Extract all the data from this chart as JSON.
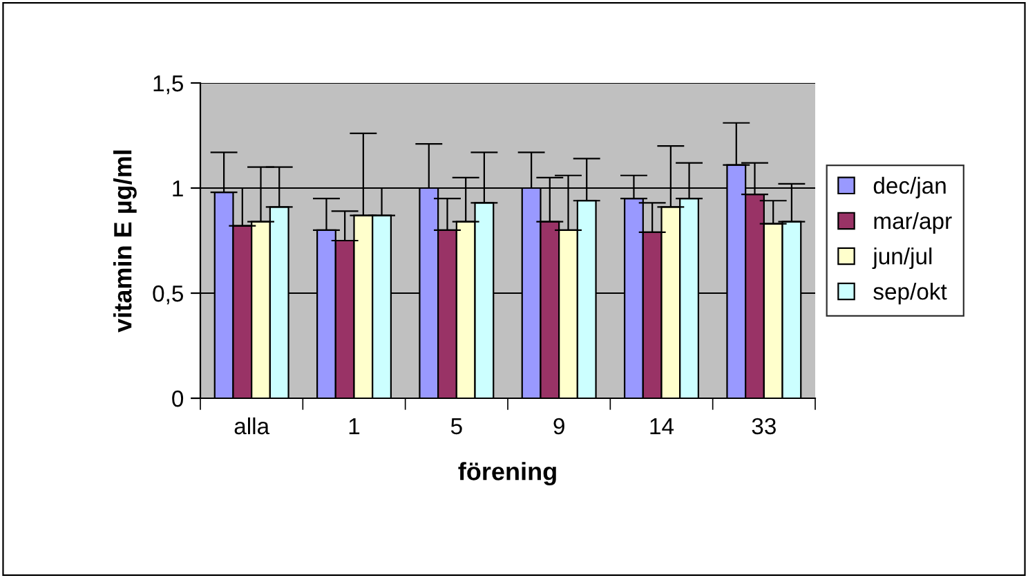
{
  "chart_data": {
    "type": "bar",
    "xlabel": "förening",
    "ylabel": "vitamin E µg/ml",
    "categories": [
      "alla",
      "1",
      "5",
      "9",
      "14",
      "33"
    ],
    "series": [
      {
        "name": "dec/jan",
        "color": "#9999ff",
        "values": [
          0.98,
          0.8,
          1.0,
          1.0,
          0.95,
          1.11
        ],
        "errors": [
          [
            0.98,
            1.17
          ],
          [
            0.8,
            0.95
          ],
          [
            1.0,
            1.21
          ],
          [
            1.0,
            1.17
          ],
          [
            0.95,
            1.06
          ],
          [
            1.11,
            1.31
          ]
        ]
      },
      {
        "name": "mar/apr",
        "color": "#993366",
        "values": [
          0.82,
          0.75,
          0.8,
          0.84,
          0.79,
          0.97
        ],
        "errors": [
          [
            0.82,
            1.0
          ],
          [
            0.75,
            0.89
          ],
          [
            0.8,
            0.95
          ],
          [
            0.84,
            1.05
          ],
          [
            0.79,
            0.93
          ],
          [
            0.97,
            1.12
          ]
        ]
      },
      {
        "name": "jun/jul",
        "color": "#ffffcc",
        "values": [
          0.84,
          0.87,
          0.84,
          0.8,
          0.91,
          0.83
        ],
        "errors": [
          [
            0.84,
            1.1
          ],
          [
            0.87,
            1.26
          ],
          [
            0.84,
            1.05
          ],
          [
            0.8,
            1.06
          ],
          [
            0.91,
            1.2
          ],
          [
            0.83,
            0.94
          ]
        ]
      },
      {
        "name": "sep/okt",
        "color": "#ccffff",
        "values": [
          0.91,
          0.87,
          0.93,
          0.94,
          0.95,
          0.84
        ],
        "errors": [
          [
            0.91,
            1.1
          ],
          [
            0.87,
            1.0
          ],
          [
            0.93,
            1.17
          ],
          [
            0.94,
            1.14
          ],
          [
            0.95,
            1.12
          ],
          [
            0.84,
            1.02
          ]
        ]
      }
    ],
    "ylim": [
      0,
      1.5
    ],
    "yticks": [
      {
        "value": 0,
        "label": "0"
      },
      {
        "value": 0.5,
        "label": "0,5"
      },
      {
        "value": 1,
        "label": "1"
      },
      {
        "value": 1.5,
        "label": "1,5"
      }
    ],
    "grid": "y",
    "legend": "right"
  }
}
